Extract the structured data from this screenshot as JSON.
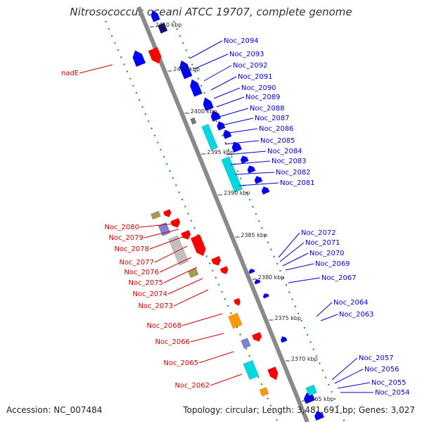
{
  "title": "Nitrosococcus oceani ATCC 19707, complete genome",
  "accession": "Accession: NC_007484",
  "topology": "Topology: circular; Length: 3,481,691 bp; Genes: 3,027",
  "colors": {
    "backbone": "#8a8a8a",
    "forward_gene": "#ff0000",
    "reverse_gene": "#0000ff",
    "cyan_feature": "#00d8e0",
    "orange_feature": "#ff9900",
    "gray_feature": "#c0c0c0",
    "olive_feature": "#a89a50",
    "lavender_feature": "#8080d0",
    "dotted_ruler": "#228822",
    "label_forward": "#cc0000",
    "label_reverse": "#0000cc"
  },
  "ticks": [
    "2410 kbp",
    "2405 kbp",
    "2400 kbp",
    "2395 kbp",
    "2390 kbp",
    "2385 kbp",
    "2380 kbp",
    "2375 kbp",
    "2370 kbp",
    "2365 kbp"
  ],
  "labels_reverse": [
    "Noc_2094",
    "Noc_2093",
    "Noc_2092",
    "Noc_2091",
    "Noc_2090",
    "Noc_2089",
    "Noc_2088",
    "Noc_2087",
    "Noc_2086",
    "Noc_2085",
    "Noc_2084",
    "Noc_2083",
    "Noc_2082",
    "Noc_2081",
    "Noc_2072",
    "Noc_2071",
    "Noc_2070",
    "Noc_2069",
    "Noc_2067",
    "Noc_2064",
    "Noc_2063",
    "Noc_2057",
    "Noc_2056",
    "Noc_2055",
    "Noc_2054"
  ],
  "labels_forward": [
    "nadE",
    "Noc_2080",
    "Noc_2079",
    "Noc_2078",
    "Noc_2077",
    "Noc_2076",
    "Noc_2075",
    "Noc_2074",
    "Noc_2073",
    "Noc_2068",
    "Noc_2066",
    "Noc_2065",
    "Noc_2062"
  ]
}
